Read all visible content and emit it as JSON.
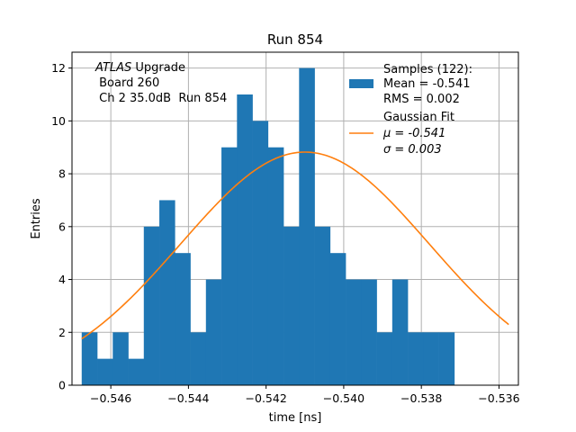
{
  "chart_data": {
    "type": "histogram",
    "title": "Run 854",
    "xlabel": "time [ns]",
    "ylabel": "Entries",
    "xlim": [
      -0.547,
      -0.5355
    ],
    "ylim": [
      0,
      12.6
    ],
    "grid": true,
    "xticks": [
      -0.546,
      -0.544,
      -0.542,
      -0.54,
      -0.538,
      -0.536
    ],
    "xtick_labels": [
      "−0.546",
      "−0.544",
      "−0.542",
      "−0.540",
      "−0.538",
      "−0.536"
    ],
    "yticks": [
      0,
      2,
      4,
      6,
      8,
      10,
      12
    ],
    "ytick_labels": [
      "0",
      "2",
      "4",
      "6",
      "8",
      "10",
      "12"
    ],
    "bins": {
      "start": -0.54675,
      "width": 0.0004,
      "counts": [
        2,
        1,
        2,
        1,
        6,
        7,
        5,
        2,
        4,
        9,
        11,
        10,
        9,
        6,
        12,
        6,
        5,
        4,
        4,
        2,
        4,
        2,
        2,
        2
      ]
    },
    "fit": {
      "mu": -0.541,
      "sigma": 0.0032,
      "amplitude": 8.82,
      "x_range": [
        -0.54675,
        -0.53575
      ],
      "color": "#ff7f0e"
    },
    "bar_color": "#1f77b4",
    "annotation": {
      "line1_italic": "ATLAS",
      "line1_rest": " Upgrade",
      "line2": " Board 260",
      "line3": " Ch 2 35.0dB  Run 854"
    },
    "legend": {
      "position": "top-right",
      "samples": [
        "Samples (122):",
        "Mean = -0.541",
        "RMS = 0.002"
      ],
      "fit_title": "Gaussian Fit",
      "fit_mu": "μ = -0.541",
      "fit_sigma": "σ = 0.003"
    }
  }
}
